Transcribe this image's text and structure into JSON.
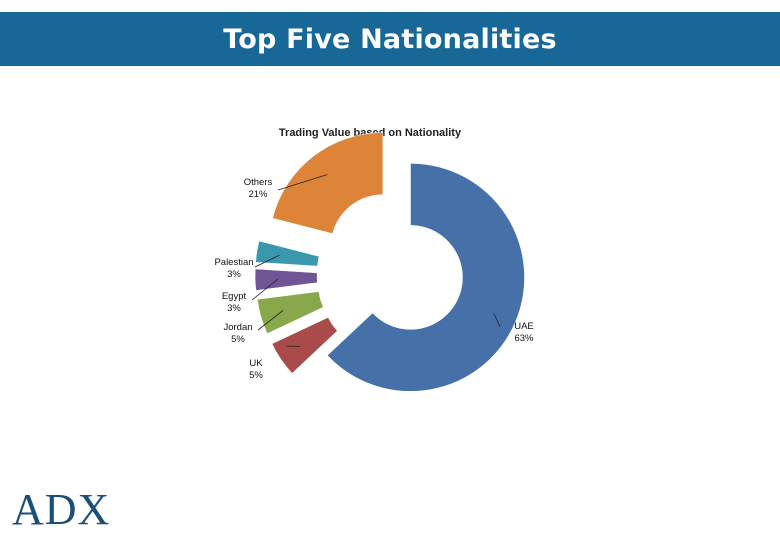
{
  "header": {
    "title": "Top Five Nationalities"
  },
  "chart_data": {
    "type": "pie",
    "title": "Trading Value based on Nationality",
    "slices": [
      {
        "name": "UAE",
        "label": "UAE",
        "pct_label": "63%",
        "value": 63,
        "color": "#4570a8"
      },
      {
        "name": "UK",
        "label": "UK",
        "pct_label": "5%",
        "value": 5,
        "color": "#a84b4a"
      },
      {
        "name": "Jordan",
        "label": "Jordan",
        "pct_label": "5%",
        "value": 5,
        "color": "#88a84b"
      },
      {
        "name": "Egypt",
        "label": "Egypt",
        "pct_label": "3%",
        "value": 3,
        "color": "#6f5596"
      },
      {
        "name": "Palestian",
        "label": "Palestian",
        "pct_label": "3%",
        "value": 3,
        "color": "#3a97ad"
      },
      {
        "name": "Others",
        "label": "Others",
        "pct_label": "21%",
        "value": 21,
        "color": "#dd8439"
      }
    ],
    "legend": "none"
  },
  "logo": {
    "text": "ADX"
  }
}
